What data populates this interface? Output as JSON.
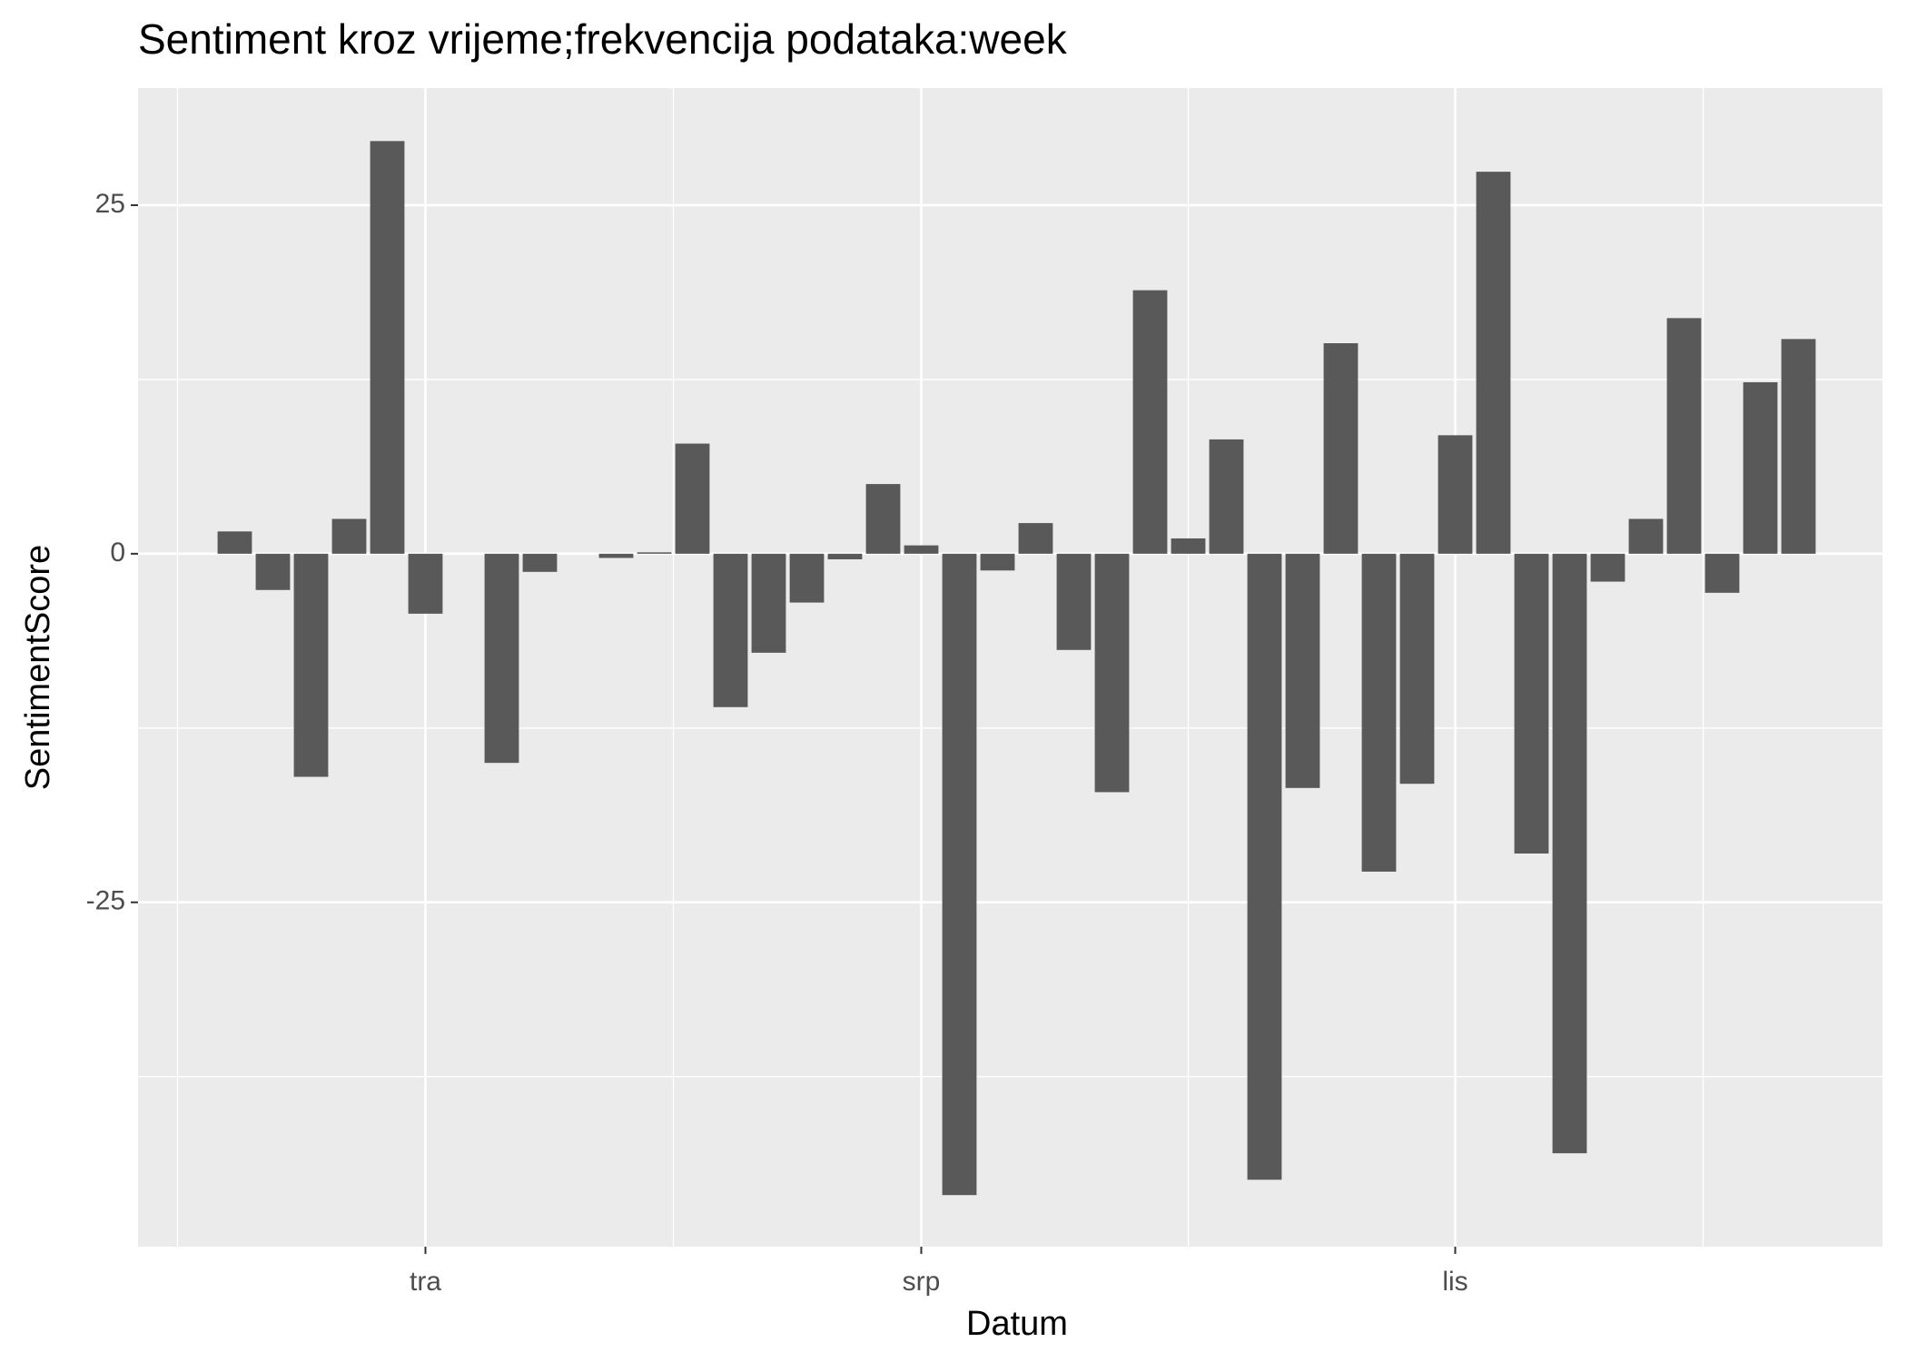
{
  "chart_data": {
    "type": "bar",
    "title": "Sentiment kroz vrijeme;frekvencija podataka:week",
    "x_label": "Datum",
    "y_label": "SentimentScore",
    "categories": [
      null,
      null,
      null,
      null,
      null,
      "tra",
      null,
      null,
      null,
      null,
      null,
      null,
      null,
      null,
      null,
      null,
      null,
      null,
      "srp",
      null,
      null,
      null,
      null,
      null,
      null,
      null,
      null,
      null,
      null,
      null,
      null,
      null,
      "lis",
      null,
      null,
      null,
      null,
      null,
      null,
      null,
      null,
      null
    ],
    "values": [
      1.6,
      -2.6,
      -16.0,
      2.5,
      29.6,
      -4.3,
      null,
      -15.0,
      -1.3,
      null,
      -0.3,
      0.1,
      7.9,
      -11.0,
      -7.1,
      -3.5,
      -0.4,
      5.0,
      0.6,
      -46.0,
      -1.2,
      2.2,
      -6.9,
      -17.1,
      18.9,
      1.1,
      8.2,
      -44.9,
      -16.8,
      15.1,
      -22.8,
      -16.5,
      8.5,
      27.4,
      -21.5,
      -43.0,
      -2.0,
      2.5,
      16.9,
      -2.8,
      12.3,
      15.4
    ],
    "color": "#595959",
    "ylim": [
      -49.7,
      33.4
    ],
    "yticks": [
      -25,
      0,
      25
    ],
    "yminor": [
      -37.5,
      -12.5,
      12.5
    ],
    "grid": true
  }
}
